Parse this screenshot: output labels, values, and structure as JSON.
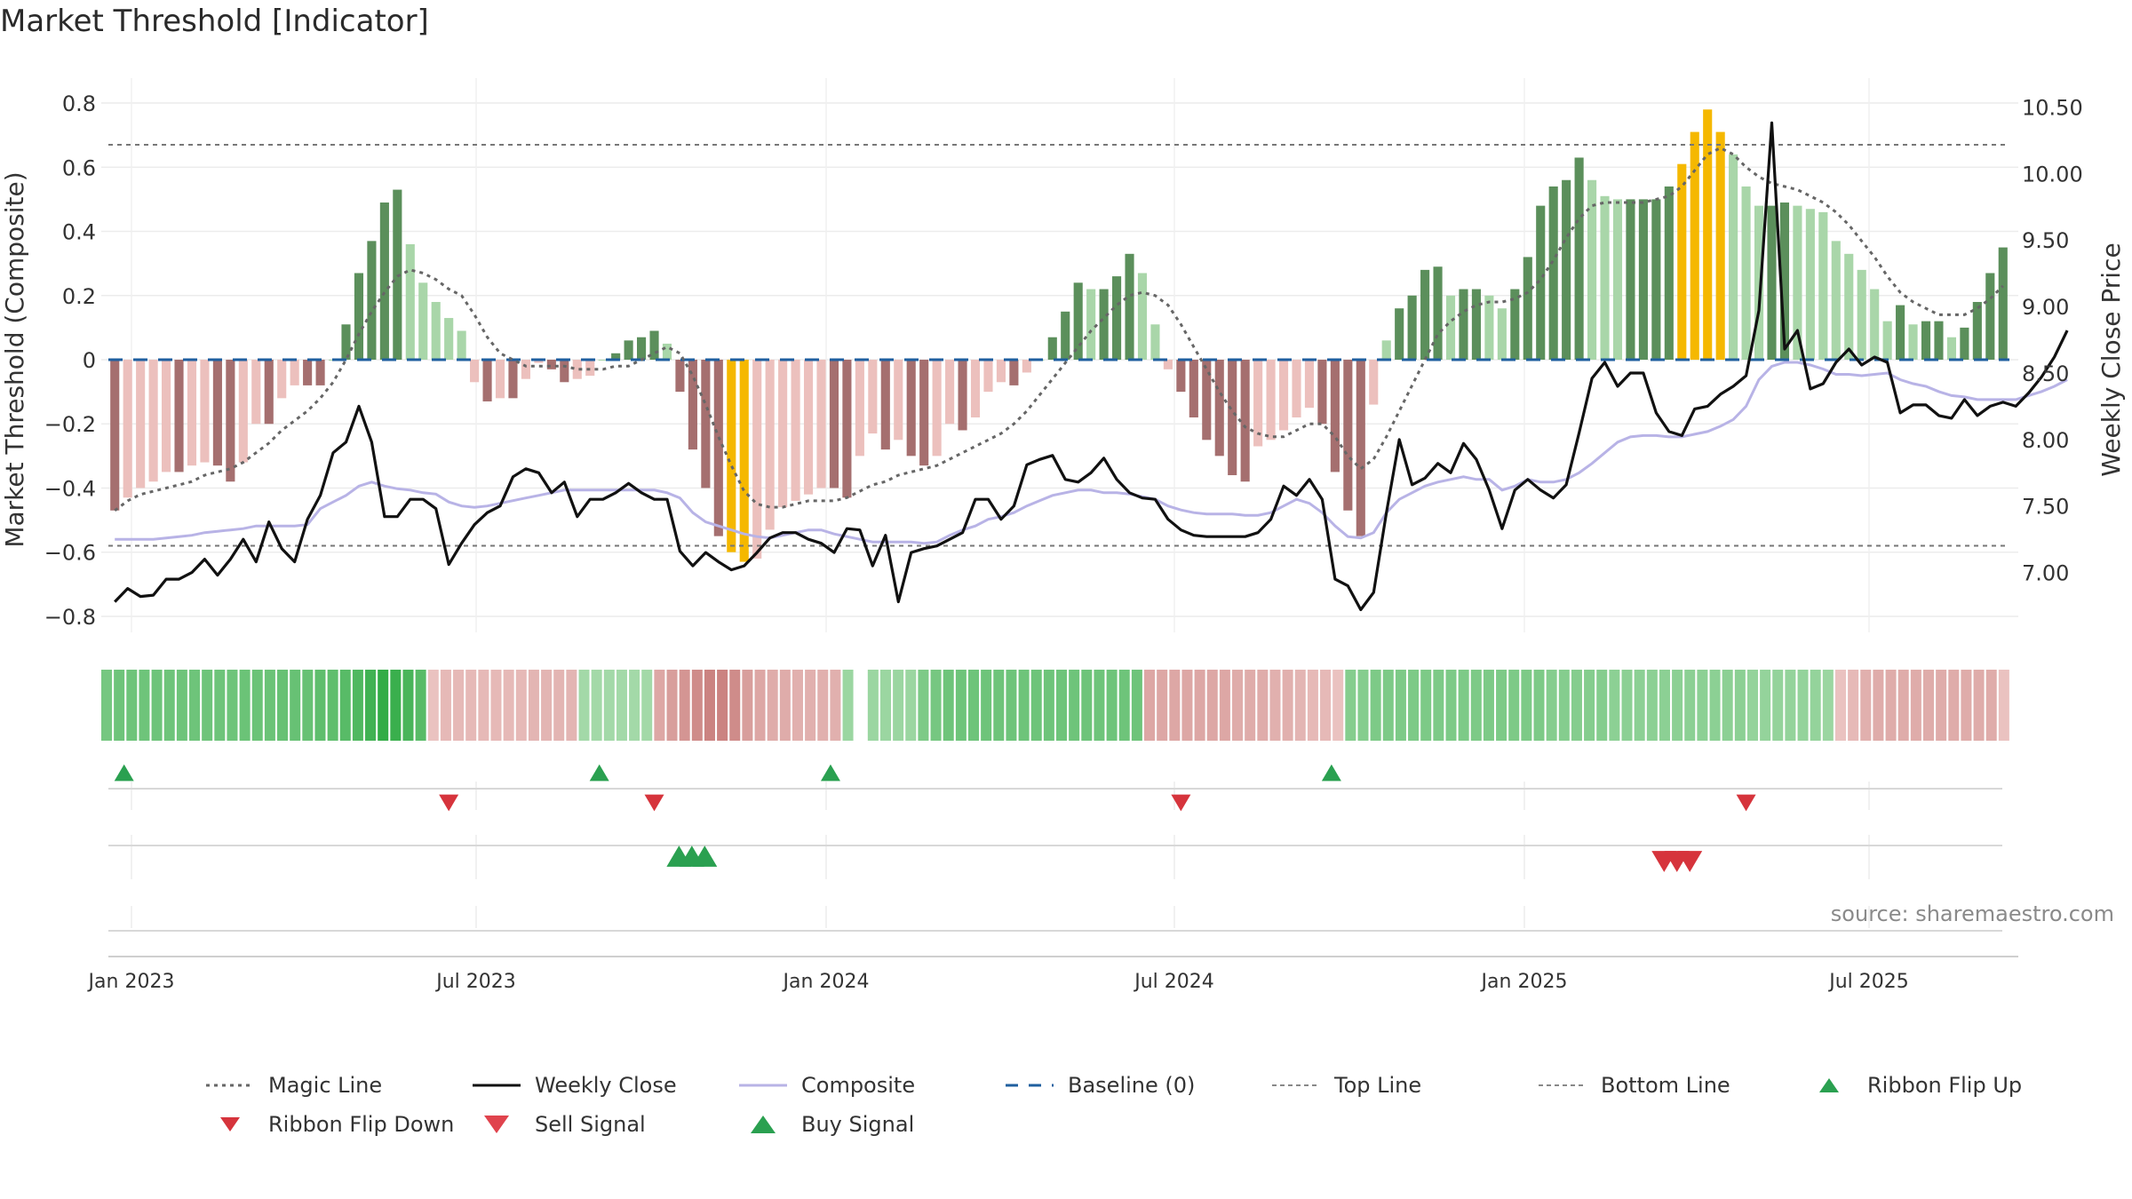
{
  "title": "Market Threshold [Indicator]",
  "source": "source: sharemaestro.com",
  "colors": {
    "pos_dark": "#5b8f5b",
    "pos_light": "#a9d6a9",
    "neg_dark": "#a56f6f",
    "neg_light": "#ecc0bd",
    "extreme": "#f5b800",
    "close": "#111111",
    "composite": "#b8b3e6",
    "magic": "#666666",
    "baseline": "#1f5f9f",
    "thresh": "#777777",
    "buy": "#2aa050",
    "sell": "#d6343c"
  },
  "chart_data": {
    "type": "bar",
    "xlabel": "",
    "ylabel_left": "Market Threshold (Composite)",
    "ylabel_right": "Weekly Close Price",
    "ylim_left": [
      -0.85,
      0.85
    ],
    "ylim_right": [
      6.55,
      10.65
    ],
    "yticks_left": [
      "0.8",
      "0.6",
      "0.4",
      "0.2",
      "0",
      "−0.2",
      "−0.4",
      "−0.6",
      "−0.8"
    ],
    "yticks_right": [
      "10.50",
      "10.00",
      "9.50",
      "9.00",
      "8.50",
      "8.00",
      "7.50",
      "7.00"
    ],
    "xticks": [
      "Jan 2023",
      "Jul 2023",
      "Jan 2024",
      "Jul 2024",
      "Jan 2025",
      "Jul 2025"
    ],
    "top_line": 0.67,
    "bottom_line": -0.58,
    "baseline": 0,
    "grid": true,
    "series": [
      {
        "name": "Composite",
        "values": [
          -0.47,
          -0.43,
          -0.4,
          -0.38,
          -0.35,
          -0.35,
          -0.33,
          -0.32,
          -0.33,
          -0.38,
          -0.32,
          -0.2,
          -0.2,
          -0.12,
          -0.08,
          -0.08,
          -0.08,
          0.0,
          0.11,
          0.27,
          0.37,
          0.49,
          0.53,
          0.36,
          0.24,
          0.18,
          0.13,
          0.09,
          -0.07,
          -0.13,
          -0.12,
          -0.12,
          -0.06,
          -0.01,
          -0.03,
          -0.07,
          -0.06,
          -0.05,
          0.0,
          0.02,
          0.06,
          0.07,
          0.09,
          0.05,
          -0.1,
          -0.28,
          -0.4,
          -0.55,
          -0.6,
          -0.63,
          -0.62,
          -0.53,
          -0.46,
          -0.44,
          -0.42,
          -0.4,
          -0.4,
          -0.43,
          -0.3,
          -0.23,
          -0.28,
          -0.25,
          -0.3,
          -0.33,
          -0.3,
          -0.2,
          -0.22,
          -0.18,
          -0.1,
          -0.07,
          -0.08,
          -0.04,
          0.0,
          0.07,
          0.15,
          0.24,
          0.22,
          0.22,
          0.26,
          0.33,
          0.27,
          0.11,
          -0.03,
          -0.1,
          -0.18,
          -0.25,
          -0.3,
          -0.36,
          -0.38,
          -0.27,
          -0.25,
          -0.22,
          -0.18,
          -0.15,
          -0.2,
          -0.35,
          -0.47,
          -0.55,
          -0.14,
          0.06,
          0.16,
          0.2,
          0.28,
          0.29,
          0.2,
          0.22,
          0.22,
          0.2,
          0.16,
          0.22,
          0.32,
          0.48,
          0.54,
          0.56,
          0.63,
          0.56,
          0.51,
          0.5,
          0.5,
          0.5,
          0.5,
          0.54,
          0.61,
          0.71,
          0.78,
          0.71,
          0.64,
          0.54,
          0.48,
          0.48,
          0.49,
          0.48,
          0.47,
          0.46,
          0.37,
          0.33,
          0.28,
          0.22,
          0.12,
          0.17,
          0.11,
          0.12,
          0.12,
          0.07,
          0.1,
          0.18,
          0.27,
          0.35
        ]
      },
      {
        "name": "Weekly Close",
        "values": [
          6.78,
          6.88,
          6.82,
          6.83,
          6.95,
          6.95,
          7.0,
          7.1,
          6.98,
          7.1,
          7.25,
          7.08,
          7.38,
          7.18,
          7.08,
          7.4,
          7.58,
          7.9,
          7.98,
          8.25,
          7.98,
          7.42,
          7.42,
          7.55,
          7.55,
          7.48,
          7.06,
          7.22,
          7.36,
          7.45,
          7.5,
          7.72,
          7.78,
          7.75,
          7.6,
          7.68,
          7.42,
          7.55,
          7.55,
          7.6,
          7.67,
          7.6,
          7.55,
          7.55,
          7.16,
          7.05,
          7.15,
          7.08,
          7.02,
          7.05,
          7.15,
          7.26,
          7.3,
          7.3,
          7.25,
          7.22,
          7.15,
          7.33,
          7.32,
          7.05,
          7.28,
          6.78,
          7.15,
          7.18,
          7.2,
          7.25,
          7.3,
          7.55,
          7.55,
          7.4,
          7.5,
          7.81,
          7.85,
          7.88,
          7.7,
          7.68,
          7.75,
          7.86,
          7.7,
          7.6,
          7.56,
          7.55,
          7.4,
          7.32,
          7.28,
          7.27,
          7.27,
          7.27,
          7.27,
          7.3,
          7.4,
          7.65,
          7.58,
          7.7,
          7.55,
          6.95,
          6.9,
          6.72,
          6.85,
          7.45,
          8.0,
          7.66,
          7.71,
          7.82,
          7.75,
          7.97,
          7.85,
          7.62,
          7.33,
          7.62,
          7.7,
          7.62,
          7.56,
          7.66,
          8.05,
          8.46,
          8.58,
          8.4,
          8.5,
          8.5,
          8.2,
          8.06,
          8.03,
          8.23,
          8.25,
          8.34,
          8.4,
          8.48,
          8.97,
          10.38,
          8.68,
          8.82,
          8.38,
          8.42,
          8.58,
          8.68,
          8.56,
          8.62,
          8.58,
          8.2,
          8.26,
          8.26,
          8.18,
          8.16,
          8.3,
          8.18,
          8.25,
          8.28,
          8.25,
          8.35,
          8.47,
          8.62,
          8.82
        ]
      },
      {
        "name": "Composite line",
        "values": [
          7.25,
          7.25,
          7.25,
          7.25,
          7.26,
          7.27,
          7.28,
          7.3,
          7.31,
          7.32,
          7.33,
          7.35,
          7.35,
          7.35,
          7.35,
          7.36,
          7.48,
          7.53,
          7.58,
          7.65,
          7.68,
          7.65,
          7.63,
          7.62,
          7.6,
          7.59,
          7.53,
          7.5,
          7.49,
          7.5,
          7.52,
          7.54,
          7.56,
          7.58,
          7.6,
          7.62,
          7.62,
          7.62,
          7.62,
          7.62,
          7.62,
          7.62,
          7.62,
          7.6,
          7.56,
          7.45,
          7.38,
          7.35,
          7.32,
          7.29,
          7.27,
          7.26,
          7.28,
          7.3,
          7.32,
          7.32,
          7.29,
          7.27,
          7.25,
          7.23,
          7.23,
          7.23,
          7.23,
          7.22,
          7.23,
          7.28,
          7.32,
          7.35,
          7.4,
          7.42,
          7.45,
          7.5,
          7.54,
          7.58,
          7.6,
          7.62,
          7.62,
          7.6,
          7.6,
          7.59,
          7.57,
          7.55,
          7.5,
          7.47,
          7.45,
          7.44,
          7.44,
          7.44,
          7.43,
          7.43,
          7.45,
          7.5,
          7.55,
          7.52,
          7.45,
          7.35,
          7.27,
          7.26,
          7.3,
          7.45,
          7.55,
          7.6,
          7.65,
          7.68,
          7.7,
          7.72,
          7.7,
          7.7,
          7.62,
          7.65,
          7.7,
          7.68,
          7.68,
          7.7,
          7.75,
          7.82,
          7.9,
          7.98,
          8.02,
          8.03,
          8.03,
          8.02,
          8.02,
          8.04,
          8.06,
          8.1,
          8.15,
          8.25,
          8.45,
          8.55,
          8.58,
          8.58,
          8.56,
          8.53,
          8.49,
          8.49,
          8.48,
          8.49,
          8.5,
          8.45,
          8.42,
          8.4,
          8.36,
          8.33,
          8.32,
          8.3,
          8.3,
          8.3,
          8.3,
          8.33,
          8.36,
          8.4,
          8.45
        ]
      },
      {
        "name": "Magic Line",
        "values": [
          -0.47,
          -0.44,
          -0.42,
          -0.41,
          -0.4,
          -0.39,
          -0.38,
          -0.36,
          -0.35,
          -0.34,
          -0.32,
          -0.29,
          -0.26,
          -0.22,
          -0.19,
          -0.16,
          -0.12,
          -0.07,
          0.0,
          0.08,
          0.15,
          0.21,
          0.26,
          0.28,
          0.27,
          0.25,
          0.22,
          0.2,
          0.14,
          0.07,
          0.02,
          0.0,
          -0.02,
          -0.02,
          -0.02,
          -0.02,
          -0.03,
          -0.03,
          -0.03,
          -0.02,
          -0.02,
          0.0,
          0.02,
          0.04,
          0.02,
          -0.05,
          -0.14,
          -0.24,
          -0.33,
          -0.41,
          -0.45,
          -0.46,
          -0.46,
          -0.45,
          -0.44,
          -0.44,
          -0.44,
          -0.43,
          -0.41,
          -0.39,
          -0.38,
          -0.36,
          -0.35,
          -0.34,
          -0.33,
          -0.31,
          -0.29,
          -0.27,
          -0.25,
          -0.23,
          -0.2,
          -0.16,
          -0.11,
          -0.06,
          -0.01,
          0.04,
          0.09,
          0.13,
          0.17,
          0.2,
          0.21,
          0.2,
          0.17,
          0.11,
          0.04,
          -0.03,
          -0.1,
          -0.16,
          -0.21,
          -0.23,
          -0.24,
          -0.24,
          -0.22,
          -0.2,
          -0.2,
          -0.24,
          -0.3,
          -0.34,
          -0.31,
          -0.24,
          -0.16,
          -0.08,
          0.0,
          0.08,
          0.12,
          0.15,
          0.17,
          0.18,
          0.18,
          0.19,
          0.21,
          0.25,
          0.31,
          0.38,
          0.44,
          0.48,
          0.49,
          0.49,
          0.49,
          0.49,
          0.5,
          0.51,
          0.54,
          0.59,
          0.64,
          0.66,
          0.64,
          0.6,
          0.57,
          0.55,
          0.54,
          0.53,
          0.51,
          0.49,
          0.46,
          0.42,
          0.37,
          0.32,
          0.26,
          0.21,
          0.18,
          0.16,
          0.14,
          0.14,
          0.14,
          0.16,
          0.19,
          0.23
        ]
      }
    ],
    "ribbon": [
      0.55,
      0.6,
      0.6,
      0.6,
      0.6,
      0.6,
      0.6,
      0.6,
      0.6,
      0.6,
      0.6,
      0.62,
      0.62,
      0.62,
      0.65,
      0.65,
      0.65,
      0.7,
      0.7,
      0.75,
      0.8,
      0.9,
      1.0,
      0.95,
      0.85,
      0.75,
      -0.2,
      -0.3,
      -0.3,
      -0.3,
      -0.3,
      -0.3,
      -0.3,
      -0.3,
      -0.35,
      -0.35,
      -0.35,
      -0.35,
      0.25,
      0.25,
      0.25,
      0.25,
      0.25,
      0.25,
      -0.5,
      -0.6,
      -0.7,
      -0.8,
      -0.9,
      -0.9,
      -0.8,
      -0.6,
      -0.5,
      -0.45,
      -0.45,
      -0.4,
      -0.4,
      -0.4,
      -0.4,
      0.3,
      0.3,
      0.3,
      0.3,
      0.3,
      0.3,
      0.5,
      0.55,
      0.6,
      0.6,
      0.6,
      0.6,
      0.6,
      0.6,
      0.6,
      0.6,
      0.6,
      0.6,
      0.6,
      0.6,
      0.6,
      0.6,
      0.6,
      0.6,
      -0.5,
      -0.5,
      -0.5,
      -0.5,
      -0.5,
      -0.5,
      -0.5,
      -0.45,
      -0.45,
      -0.45,
      -0.4,
      -0.4,
      -0.35,
      -0.3,
      -0.3,
      -0.2,
      0.45,
      0.45,
      0.5,
      0.5,
      0.5,
      0.5,
      0.5,
      0.5,
      0.5,
      0.5,
      0.5,
      0.5,
      0.5,
      0.5,
      0.5,
      0.5,
      0.45,
      0.45,
      0.45,
      0.45,
      0.45,
      0.4,
      0.4,
      0.4,
      0.4,
      0.4,
      0.4,
      0.4,
      0.4,
      0.4,
      0.4,
      0.4,
      0.35,
      0.35,
      0.35,
      0.35,
      0.35,
      0.35,
      0.3,
      -0.2,
      -0.3,
      -0.4,
      -0.45,
      -0.45,
      -0.45,
      -0.45,
      -0.45,
      -0.45,
      -0.45,
      -0.45,
      -0.45,
      -0.45,
      -0.2
    ],
    "ribbon_gap_index": 60,
    "markers": {
      "ribbon_flip_up": [
        1,
        38,
        56,
        95
      ],
      "ribbon_flip_down": [
        26,
        42,
        83,
        127
      ],
      "buy_signal": [
        46,
        47,
        48
      ],
      "sell_signal": [
        122,
        123,
        124
      ]
    },
    "legend": [
      "Magic Line",
      "Weekly Close",
      "Composite",
      "Baseline (0)",
      "Top Line",
      "Bottom Line",
      "Ribbon Flip Up",
      "Ribbon Flip Down",
      "Sell Signal",
      "Buy Signal"
    ]
  }
}
